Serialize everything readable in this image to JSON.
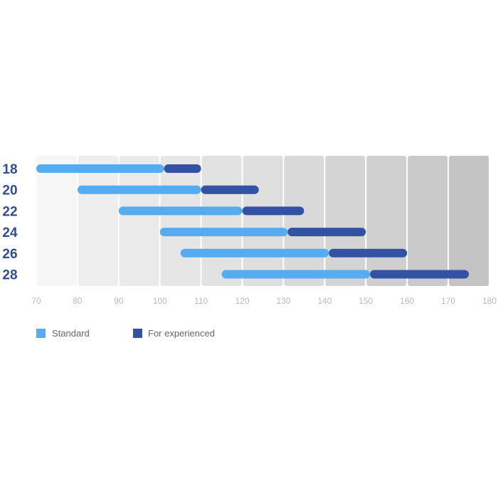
{
  "chart_data": {
    "type": "bar",
    "categories": [
      "18",
      "20",
      "22",
      "24",
      "26",
      "28"
    ],
    "series": [
      {
        "name": "Standard",
        "color": "#56acf1",
        "ranges": [
          [
            70,
            101
          ],
          [
            80,
            110
          ],
          [
            90,
            120
          ],
          [
            100,
            131
          ],
          [
            105,
            141
          ],
          [
            115,
            151
          ]
        ]
      },
      {
        "name": "For experienced",
        "color": "#3452a4",
        "ranges": [
          [
            101,
            110
          ],
          [
            110,
            124
          ],
          [
            120,
            135
          ],
          [
            131,
            150
          ],
          [
            141,
            160
          ],
          [
            151,
            175
          ]
        ]
      }
    ],
    "x_ticks": [
      70,
      80,
      90,
      100,
      110,
      120,
      130,
      140,
      150,
      160,
      170,
      180
    ],
    "xlim": [
      70,
      180
    ],
    "grid": "alternating shaded column bands",
    "legend_position": "bottom-left",
    "title": "",
    "xlabel": "",
    "ylabel": ""
  },
  "colors": {
    "category_label": "#2f4d8f",
    "tick_label": "#b9b9b9",
    "legend_text": "#666666",
    "column_shades": [
      "#f6f6f6",
      "#eeeeee",
      "#eaeaea",
      "#e6e6e6",
      "#e2e2e2",
      "#dedede",
      "#d9d9d9",
      "#d4d4d4",
      "#cfcfcf",
      "#cacaca",
      "#c3c3c3"
    ]
  }
}
